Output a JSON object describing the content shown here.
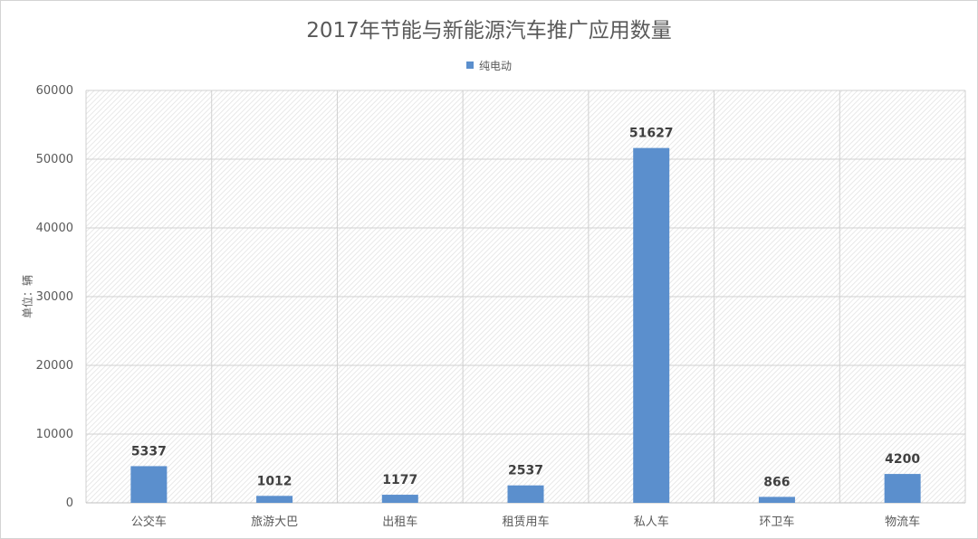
{
  "chart_data": {
    "type": "bar",
    "title": "2017年节能与新能源汽车推广应用数量",
    "ylabel": "单位：辆",
    "xlabel": "",
    "categories": [
      "公交车",
      "旅游大巴",
      "出租车",
      "租赁用车",
      "私人车",
      "环卫车",
      "物流车"
    ],
    "series": [
      {
        "name": "纯电动",
        "values": [
          5337,
          1012,
          1177,
          2537,
          51627,
          866,
          4200
        ],
        "color": "#5b8fcd"
      }
    ],
    "ylim": [
      0,
      60000
    ],
    "yticks": [
      0,
      10000,
      20000,
      30000,
      40000,
      50000,
      60000
    ],
    "grid": true,
    "legend_position": "top"
  }
}
